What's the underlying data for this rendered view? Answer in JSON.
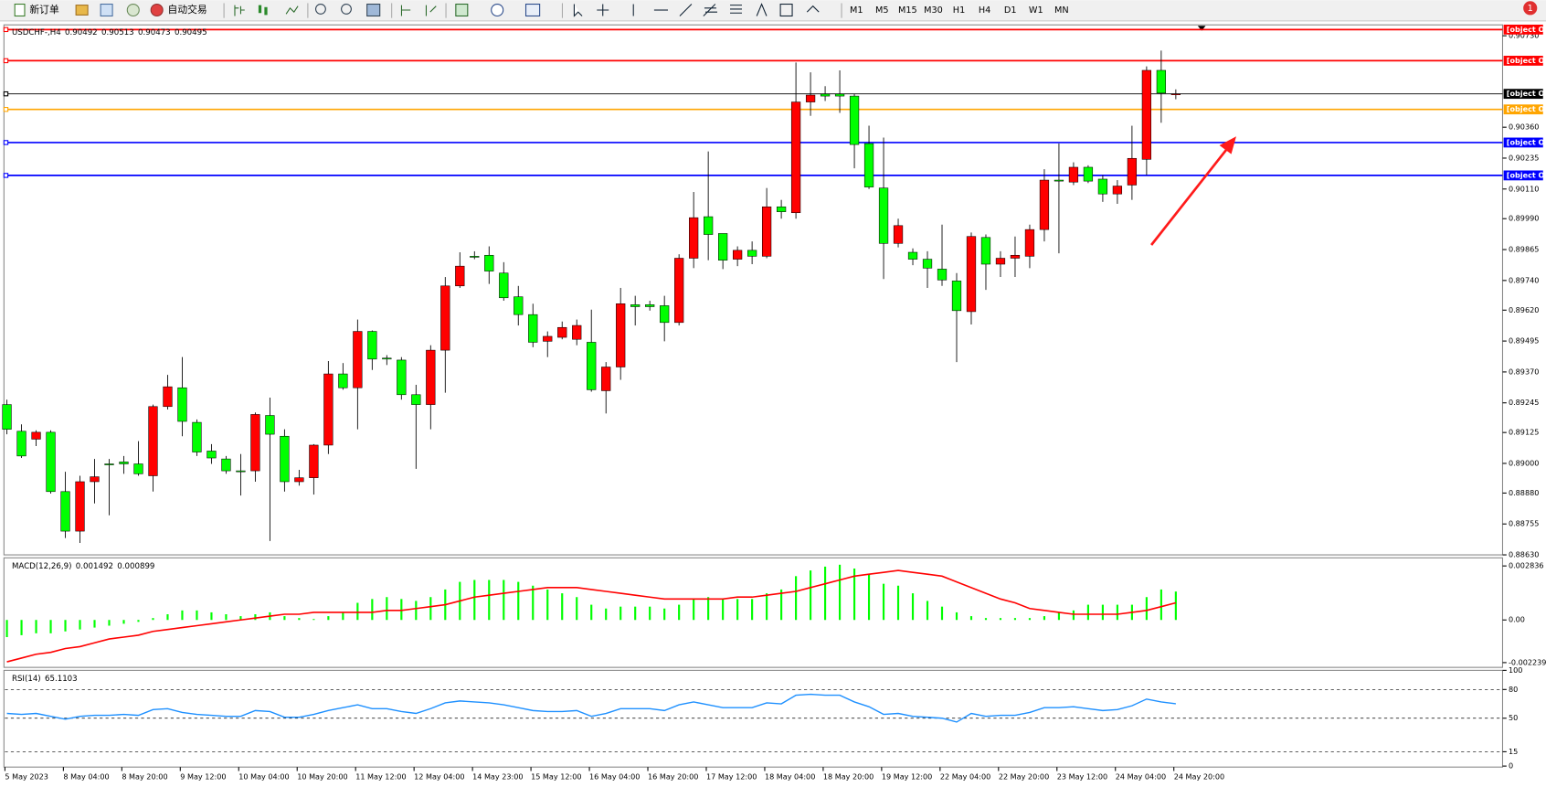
{
  "toolbar": {
    "new_order": "新订单",
    "auto_trading": "自动交易",
    "timeframes": [
      "M1",
      "M5",
      "M15",
      "M30",
      "H1",
      "H4",
      "D1",
      "W1",
      "MN"
    ],
    "notification": "1"
  },
  "chart_data": [
    {
      "type": "candlestick",
      "symbol": "USDCHF-,H4",
      "up_color": "#ff0000",
      "down_color": "#00ff00",
      "ylim": [
        0.8863,
        0.90774
      ],
      "yticks": [
        {
          "value": 0.9073,
          "label": "0.90730"
        },
        {
          "value": 0.9036,
          "label": "0.90360"
        },
        {
          "value": 0.90235,
          "label": "0.90235"
        },
        {
          "value": 0.9011,
          "label": "0.90110"
        },
        {
          "value": 0.8999,
          "label": "0.89990"
        },
        {
          "value": 0.89865,
          "label": "0.89865"
        },
        {
          "value": 0.8974,
          "label": "0.89740"
        },
        {
          "value": 0.8962,
          "label": "0.89620"
        },
        {
          "value": 0.89495,
          "label": "0.89495"
        },
        {
          "value": 0.8937,
          "label": "0.89370"
        },
        {
          "value": 0.89245,
          "label": "0.89245"
        },
        {
          "value": 0.89125,
          "label": "0.89125"
        },
        {
          "value": 0.89,
          "label": "0.89000"
        },
        {
          "value": 0.8888,
          "label": "0.88880"
        },
        {
          "value": 0.88755,
          "label": "0.88755"
        },
        {
          "value": 0.8863,
          "label": "0.88630"
        }
      ],
      "hlines": [
        {
          "value": 0.90755,
          "color": "#ff0000"
        },
        {
          "value": 0.90629,
          "color": "#ff0000"
        },
        {
          "value": 0.90495,
          "color": "#000000"
        },
        {
          "value": 0.90432,
          "color": "#ffa500"
        },
        {
          "value": 0.90298,
          "color": "#0000ff"
        },
        {
          "value": 0.90165,
          "color": "#0000ff"
        }
      ],
      "categories": [
        "5 May 2023",
        null,
        null,
        null,
        "8 May 04:00",
        null,
        null,
        null,
        "8 May 20:00",
        null,
        null,
        null,
        "9 May 12:00",
        null,
        null,
        null,
        "10 May 04:00",
        null,
        null,
        null,
        "10 May 20:00",
        null,
        null,
        null,
        "11 May 12:00",
        null,
        null,
        null,
        "12 May 04:00",
        null,
        null,
        null,
        "14 May 23:00",
        null,
        null,
        null,
        "15 May 12:00",
        null,
        null,
        null,
        "16 May 04:00",
        null,
        null,
        null,
        "16 May 20:00",
        null,
        null,
        null,
        "17 May 12:00",
        null,
        null,
        null,
        "18 May 04:00",
        null,
        null,
        null,
        "18 May 20:00",
        null,
        null,
        null,
        "19 May 12:00",
        null,
        null,
        null,
        "22 May 04:00",
        null,
        null,
        null,
        "22 May 20:00",
        null,
        null,
        null,
        "23 May 12:00",
        null,
        null,
        null,
        "24 May 04:00",
        null,
        null,
        null,
        "24 May 20:00"
      ],
      "open": [
        0.89238,
        0.8913,
        0.89098,
        0.89126,
        0.88886,
        0.88726,
        0.88926,
        0.88998,
        0.89006,
        0.88998,
        0.8895,
        0.8923,
        0.89306,
        0.89166,
        0.8905,
        0.89018,
        0.8897,
        0.8897,
        0.89194,
        0.8911,
        0.88926,
        0.88942,
        0.89074,
        0.89362,
        0.89306,
        0.89534,
        0.89426,
        0.89418,
        0.89278,
        0.89238,
        0.89458,
        0.89718,
        0.89838,
        0.89842,
        0.8977,
        0.89674,
        0.89602,
        0.89494,
        0.8951,
        0.89502,
        0.8949,
        0.89294,
        0.8939,
        0.89642,
        0.89642,
        0.89638,
        0.8957,
        0.8983,
        0.89998,
        0.8993,
        0.89826,
        0.89862,
        0.89838,
        0.90038,
        0.90014,
        0.90462,
        0.90494,
        0.90494,
        0.90486,
        0.90294,
        0.90114,
        0.8989,
        0.89854,
        0.89826,
        0.89786,
        0.89738,
        0.89614,
        0.89914,
        0.89806,
        0.8983,
        0.89838,
        0.89946,
        0.90146,
        0.90138,
        0.90198,
        0.9015,
        0.9009,
        0.90126,
        0.9023,
        0.9059,
        0.90492
      ],
      "high": [
        0.89258,
        0.89158,
        0.89134,
        0.89134,
        0.88966,
        0.8895,
        0.89018,
        0.89018,
        0.8903,
        0.8909,
        0.89238,
        0.89358,
        0.8943,
        0.89178,
        0.89078,
        0.8903,
        0.89038,
        0.89206,
        0.89266,
        0.89138,
        0.88974,
        0.89078,
        0.89414,
        0.89406,
        0.89582,
        0.89538,
        0.89438,
        0.8943,
        0.89318,
        0.89478,
        0.89754,
        0.89854,
        0.89858,
        0.89878,
        0.89814,
        0.89718,
        0.89646,
        0.89534,
        0.89574,
        0.89582,
        0.89622,
        0.8941,
        0.8971,
        0.89678,
        0.89658,
        0.89678,
        0.89846,
        0.90098,
        0.90262,
        0.8993,
        0.89878,
        0.89898,
        0.90114,
        0.90066,
        0.90622,
        0.90582,
        0.90526,
        0.9059,
        0.90494,
        0.90366,
        0.90318,
        0.8999,
        0.8987,
        0.89858,
        0.89966,
        0.8977,
        0.89934,
        0.89926,
        0.89858,
        0.89918,
        0.89966,
        0.9019,
        0.90294,
        0.90218,
        0.90206,
        0.90166,
        0.90146,
        0.90366,
        0.90606,
        0.9067,
        0.90513
      ],
      "low": [
        0.89118,
        0.89022,
        0.8907,
        0.88878,
        0.88698,
        0.88678,
        0.88838,
        0.8879,
        0.88958,
        0.8895,
        0.88886,
        0.89218,
        0.8911,
        0.8903,
        0.88998,
        0.88958,
        0.8887,
        0.88926,
        0.88686,
        0.88886,
        0.8891,
        0.88874,
        0.89038,
        0.89298,
        0.89138,
        0.89378,
        0.89398,
        0.89258,
        0.88978,
        0.89138,
        0.89286,
        0.8971,
        0.89826,
        0.89726,
        0.89658,
        0.89558,
        0.8947,
        0.8943,
        0.89502,
        0.89478,
        0.8929,
        0.89202,
        0.89338,
        0.89558,
        0.89618,
        0.89494,
        0.89558,
        0.8979,
        0.89822,
        0.89786,
        0.89798,
        0.89806,
        0.8983,
        0.8999,
        0.8999,
        0.90406,
        0.90466,
        0.90418,
        0.90194,
        0.9011,
        0.89746,
        0.89874,
        0.89802,
        0.8971,
        0.89718,
        0.8941,
        0.89562,
        0.89702,
        0.89754,
        0.89754,
        0.8979,
        0.89898,
        0.8985,
        0.90126,
        0.90134,
        0.90058,
        0.9005,
        0.90066,
        0.90166,
        0.90378,
        0.90473
      ],
      "close": [
        0.89138,
        0.8903,
        0.89126,
        0.88886,
        0.88726,
        0.88926,
        0.88946,
        0.88994,
        0.88998,
        0.88958,
        0.8923,
        0.8931,
        0.8917,
        0.89046,
        0.89022,
        0.8897,
        0.88966,
        0.89198,
        0.89118,
        0.88926,
        0.88942,
        0.89074,
        0.89362,
        0.89306,
        0.89534,
        0.89422,
        0.89422,
        0.89278,
        0.89238,
        0.89458,
        0.89718,
        0.89798,
        0.89834,
        0.89778,
        0.8967,
        0.89602,
        0.8949,
        0.89514,
        0.8955,
        0.89558,
        0.89298,
        0.8939,
        0.89646,
        0.89634,
        0.89634,
        0.8957,
        0.8983,
        0.89994,
        0.89926,
        0.89822,
        0.89862,
        0.89838,
        0.90038,
        0.90018,
        0.90462,
        0.9049,
        0.90486,
        0.90486,
        0.9029,
        0.90118,
        0.8989,
        0.89962,
        0.89826,
        0.8979,
        0.89742,
        0.89618,
        0.89918,
        0.89806,
        0.8983,
        0.89842,
        0.89946,
        0.90146,
        0.90142,
        0.90198,
        0.90142,
        0.9009,
        0.90122,
        0.90234,
        0.9059,
        0.90498,
        0.90495
      ]
    },
    {
      "type": "macd",
      "name": "MACD(12,26,9)",
      "ylim": [
        -0.00249,
        0.00321
      ],
      "yticks": [
        0.002836,
        {
          "value": 0,
          "label": "0.00"
        },
        -0.002239
      ],
      "series": [
        {
          "name": "MACD",
          "color": "#00ff00",
          "values": [
            -0.0009,
            -0.0008,
            -0.0007,
            -0.0007,
            -0.0006,
            -0.0005,
            -0.0004,
            -0.0003,
            -0.0002,
            -0.0001,
            0.0001,
            0.0003,
            0.0005,
            0.0005,
            0.0004,
            0.0003,
            0.0002,
            0.0003,
            0.0004,
            0.0002,
            0.0001,
            5e-05,
            0.0002,
            0.0004,
            0.0009,
            0.0011,
            0.0012,
            0.0011,
            0.001,
            0.0012,
            0.0016,
            0.002,
            0.0021,
            0.0021,
            0.0021,
            0.002,
            0.0018,
            0.0016,
            0.0014,
            0.0012,
            0.0008,
            0.0006,
            0.0007,
            0.0007,
            0.0007,
            0.0006,
            0.0008,
            0.0011,
            0.0012,
            0.0011,
            0.0011,
            0.0011,
            0.0014,
            0.0016,
            0.0023,
            0.0026,
            0.0028,
            0.0029,
            0.0027,
            0.0024,
            0.0019,
            0.0018,
            0.0014,
            0.001,
            0.0007,
            0.0004,
            0.0002,
            0.0001,
            0.0001,
            0.0001,
            0.0001,
            0.0002,
            0.0004,
            0.0005,
            0.0008,
            0.0008,
            0.0008,
            0.0008,
            0.0012,
            0.0016,
            0.001492
          ]
        },
        {
          "name": "Signal",
          "color": "#ff0000",
          "values": [
            -0.0022,
            -0.002,
            -0.0018,
            -0.0017,
            -0.0015,
            -0.0014,
            -0.0012,
            -0.001,
            -0.0009,
            -0.0008,
            -0.0006,
            -0.0005,
            -0.0004,
            -0.0003,
            -0.0002,
            -0.0001,
            0,
            0.0001,
            0.0002,
            0.0003,
            0.0003,
            0.0004,
            0.0004,
            0.0004,
            0.0004,
            0.0004,
            0.0005,
            0.0005,
            0.0006,
            0.0007,
            0.0008,
            0.001,
            0.0012,
            0.0013,
            0.0014,
            0.0015,
            0.0016,
            0.0017,
            0.0017,
            0.0017,
            0.0016,
            0.0015,
            0.0014,
            0.0013,
            0.0012,
            0.0011,
            0.0011,
            0.0011,
            0.0011,
            0.0011,
            0.0012,
            0.0012,
            0.0013,
            0.0014,
            0.0015,
            0.0017,
            0.0019,
            0.0021,
            0.0023,
            0.0024,
            0.0025,
            0.0026,
            0.0025,
            0.0024,
            0.0023,
            0.002,
            0.0017,
            0.0014,
            0.0011,
            0.0009,
            0.0006,
            0.0005,
            0.0004,
            0.0003,
            0.0003,
            0.0003,
            0.0003,
            0.0004,
            0.0005,
            0.0007,
            0.000899
          ]
        }
      ]
    },
    {
      "type": "line",
      "name": "RSI(14)",
      "ylim": [
        0,
        100
      ],
      "yticks": [
        100,
        80,
        50,
        15,
        0
      ],
      "grid": "dashed",
      "color": "#1e90ff",
      "values": [
        55,
        54,
        55,
        52,
        49,
        52,
        53,
        53,
        54,
        53,
        59,
        60,
        56,
        54,
        53,
        52,
        52,
        58,
        57,
        51,
        51,
        54,
        58,
        61,
        64,
        60,
        60,
        57,
        55,
        60,
        66,
        68,
        67,
        66,
        64,
        61,
        58,
        57,
        57,
        58,
        52,
        55,
        60,
        60,
        60,
        58,
        64,
        67,
        64,
        61,
        61,
        61,
        66,
        65,
        74,
        75,
        74,
        74,
        67,
        62,
        54,
        55,
        52,
        51,
        50,
        46,
        55,
        52,
        53,
        53,
        56,
        61,
        61,
        62,
        60,
        58,
        59,
        63,
        70,
        67,
        65.1103
      ]
    }
  ]
}
